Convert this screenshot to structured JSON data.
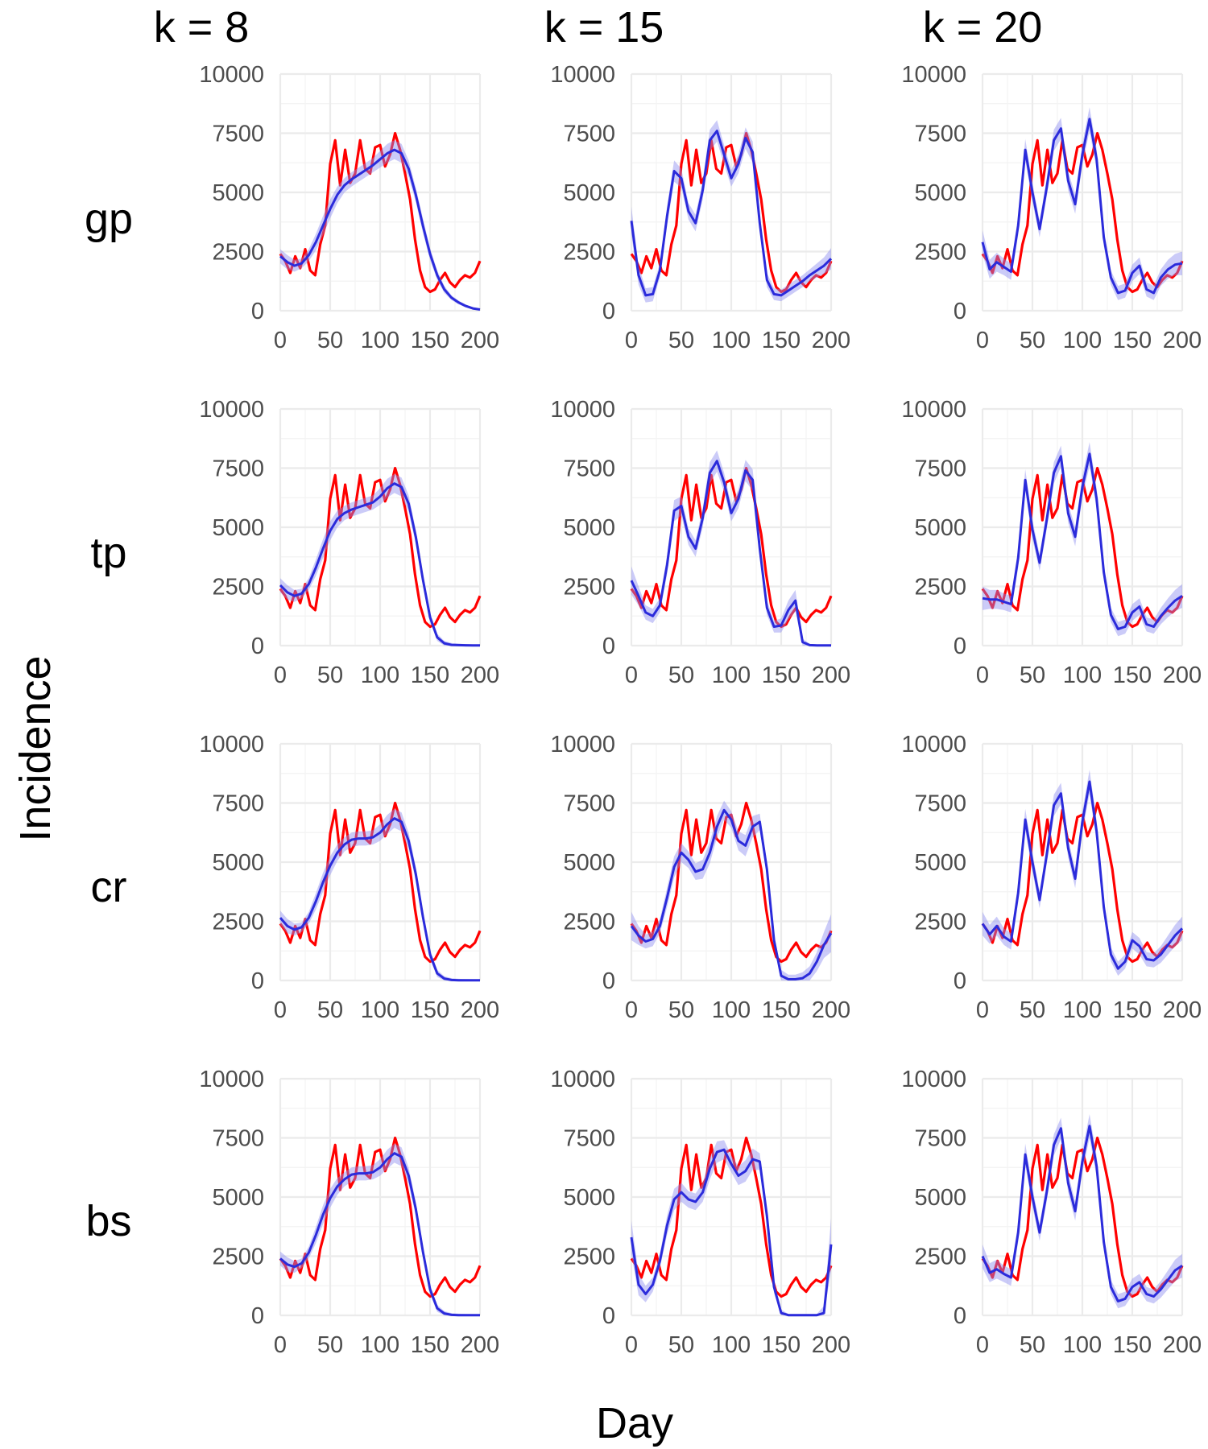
{
  "figure": {
    "x_axis_title": "Day",
    "y_axis_title": "Incidence",
    "columns": [
      "k = 8",
      "k = 15",
      "k = 20"
    ],
    "rows": [
      "gp",
      "tp",
      "cr",
      "bs"
    ],
    "colors": {
      "observed": "#ff0000",
      "fit": "#2b2bdb",
      "ribbon": "#8c8cf0",
      "grid": "#ebebeb",
      "tick": "#4d4d4d"
    }
  },
  "chart_data": {
    "type": "line",
    "layout": "facet grid, 4 rows x 3 columns",
    "xlabel": "Day",
    "ylabel": "Incidence",
    "xlim": [
      0,
      200
    ],
    "ylim": [
      0,
      10000
    ],
    "x_ticks": [
      0,
      50,
      100,
      150,
      200
    ],
    "y_ticks": [
      0,
      2500,
      5000,
      7500,
      10000
    ],
    "grid": true,
    "legend": "none",
    "series": [
      {
        "name": "observed",
        "color": "#ff0000",
        "x": [
          0,
          5,
          10,
          15,
          20,
          25,
          30,
          35,
          40,
          45,
          50,
          55,
          60,
          65,
          70,
          75,
          80,
          85,
          90,
          95,
          100,
          105,
          110,
          115,
          120,
          125,
          130,
          135,
          140,
          145,
          150,
          155,
          160,
          165,
          170,
          175,
          180,
          185,
          190,
          195,
          200
        ],
        "values": [
          2400,
          2100,
          1600,
          2300,
          1800,
          2600,
          1700,
          1500,
          2800,
          3600,
          6200,
          7200,
          5300,
          6800,
          5400,
          5800,
          7200,
          6000,
          5800,
          6900,
          7000,
          6100,
          6600,
          7500,
          6800,
          5800,
          4700,
          3000,
          1700,
          1000,
          800,
          900,
          1300,
          1600,
          1200,
          1000,
          1300,
          1500,
          1400,
          1600,
          2100
        ]
      }
    ],
    "panels": [
      {
        "row": "gp",
        "column": "k = 8",
        "fit": [
          2300,
          2050,
          1900,
          2000,
          2350,
          2900,
          3600,
          4300,
          4900,
          5300,
          5550,
          5750,
          5950,
          6150,
          6400,
          6650,
          6800,
          6650,
          6000,
          4900,
          3600,
          2400,
          1500,
          900,
          550,
          350,
          200,
          100,
          50
        ],
        "band": [
          300,
          300,
          250,
          200,
          250,
          350,
          400,
          400,
          350,
          300,
          300,
          300,
          300,
          300,
          350,
          400,
          400,
          400,
          350,
          300,
          300,
          250,
          200,
          150,
          100,
          80,
          60,
          50,
          40
        ]
      },
      {
        "row": "gp",
        "column": "k = 15",
        "fit": [
          3800,
          1500,
          650,
          700,
          1700,
          4000,
          5900,
          5600,
          4200,
          3700,
          5100,
          7200,
          7600,
          6600,
          5600,
          6200,
          7300,
          6700,
          3700,
          1300,
          700,
          650,
          850,
          1050,
          1250,
          1500,
          1700,
          1900,
          2200
        ],
        "band": [
          600,
          400,
          300,
          300,
          300,
          400,
          450,
          400,
          350,
          350,
          400,
          450,
          450,
          400,
          350,
          400,
          450,
          450,
          350,
          300,
          250,
          250,
          250,
          250,
          250,
          250,
          300,
          350,
          450
        ]
      },
      {
        "row": "gp",
        "column": "k = 20",
        "fit": [
          2900,
          1750,
          2050,
          1850,
          1650,
          3600,
          6800,
          5000,
          3450,
          5200,
          7200,
          7700,
          5500,
          4500,
          6600,
          8100,
          6400,
          3100,
          1400,
          750,
          850,
          1600,
          1900,
          900,
          750,
          1400,
          1750,
          1950,
          2000
        ],
        "band": [
          500,
          400,
          400,
          350,
          350,
          400,
          450,
          400,
          350,
          400,
          450,
          450,
          400,
          400,
          450,
          500,
          450,
          350,
          300,
          300,
          300,
          350,
          350,
          300,
          300,
          350,
          400,
          450,
          500
        ]
      },
      {
        "row": "tp",
        "column": "k = 8",
        "fit": [
          2550,
          2250,
          2100,
          2200,
          2600,
          3300,
          4100,
          4850,
          5350,
          5600,
          5750,
          5850,
          5950,
          6050,
          6300,
          6650,
          6850,
          6700,
          6000,
          4600,
          2800,
          1200,
          350,
          100,
          30,
          20,
          15,
          10,
          10
        ],
        "band": [
          300,
          300,
          250,
          200,
          250,
          350,
          400,
          400,
          350,
          300,
          300,
          300,
          300,
          300,
          350,
          400,
          400,
          400,
          350,
          300,
          250,
          200,
          150,
          100,
          80,
          60,
          50,
          40,
          40
        ]
      },
      {
        "row": "tp",
        "column": "k = 15",
        "fit": [
          2750,
          2100,
          1400,
          1250,
          1700,
          3400,
          5700,
          5900,
          4600,
          4100,
          5400,
          7300,
          7800,
          6900,
          5600,
          6200,
          7400,
          7000,
          4100,
          1600,
          800,
          850,
          1500,
          1900,
          150,
          20,
          10,
          10,
          10
        ],
        "band": [
          600,
          400,
          300,
          300,
          300,
          400,
          450,
          400,
          350,
          350,
          400,
          450,
          450,
          400,
          350,
          400,
          450,
          450,
          350,
          300,
          250,
          300,
          400,
          450,
          150,
          50,
          40,
          40,
          40
        ]
      },
      {
        "row": "tp",
        "column": "k = 20",
        "fit": [
          2000,
          1950,
          1950,
          1850,
          1750,
          3700,
          7000,
          4900,
          3500,
          5300,
          7300,
          8000,
          5600,
          4600,
          6700,
          8100,
          6200,
          3100,
          1300,
          700,
          800,
          1400,
          1650,
          900,
          800,
          1250,
          1600,
          1900,
          2100
        ],
        "band": [
          500,
          400,
          400,
          350,
          350,
          400,
          450,
          400,
          350,
          400,
          450,
          450,
          400,
          400,
          450,
          500,
          450,
          350,
          300,
          300,
          300,
          350,
          350,
          300,
          300,
          350,
          400,
          450,
          500
        ]
      },
      {
        "row": "cr",
        "column": "k = 8",
        "fit": [
          2650,
          2300,
          2150,
          2250,
          2650,
          3350,
          4150,
          4850,
          5400,
          5750,
          5950,
          6000,
          6000,
          6050,
          6250,
          6600,
          6850,
          6700,
          5900,
          4500,
          2700,
          1100,
          300,
          80,
          20,
          10,
          10,
          10,
          10
        ],
        "band": [
          300,
          300,
          250,
          200,
          250,
          350,
          400,
          400,
          350,
          300,
          300,
          300,
          300,
          300,
          350,
          400,
          400,
          400,
          350,
          300,
          250,
          200,
          150,
          100,
          80,
          60,
          50,
          40,
          40
        ]
      },
      {
        "row": "cr",
        "column": "k = 15",
        "fit": [
          2300,
          1900,
          1650,
          1750,
          2300,
          3500,
          4800,
          5400,
          5100,
          4600,
          4700,
          5400,
          6500,
          7200,
          6800,
          5900,
          5700,
          6500,
          6700,
          4700,
          1700,
          200,
          50,
          50,
          100,
          300,
          800,
          1500,
          2000
        ],
        "band": [
          600,
          400,
          300,
          300,
          300,
          400,
          450,
          400,
          350,
          350,
          400,
          450,
          450,
          400,
          350,
          400,
          450,
          450,
          350,
          300,
          250,
          250,
          200,
          200,
          250,
          300,
          400,
          550,
          800
        ]
      },
      {
        "row": "cr",
        "column": "k = 20",
        "fit": [
          2400,
          1950,
          2300,
          1850,
          1650,
          3700,
          6800,
          5000,
          3400,
          5300,
          7400,
          7900,
          5600,
          4300,
          6700,
          8400,
          6300,
          3100,
          1100,
          500,
          800,
          1700,
          1450,
          900,
          850,
          1100,
          1500,
          1900,
          2200
        ],
        "band": [
          500,
          400,
          400,
          350,
          350,
          400,
          450,
          400,
          350,
          400,
          450,
          450,
          400,
          400,
          450,
          500,
          450,
          350,
          300,
          300,
          300,
          350,
          350,
          300,
          300,
          350,
          400,
          450,
          500
        ]
      },
      {
        "row": "bs",
        "column": "k = 8",
        "fit": [
          2400,
          2150,
          2050,
          2200,
          2650,
          3400,
          4250,
          4950,
          5450,
          5750,
          5950,
          6000,
          6000,
          6050,
          6250,
          6600,
          6850,
          6700,
          5900,
          4500,
          2700,
          1100,
          300,
          80,
          20,
          10,
          10,
          10,
          10
        ],
        "band": [
          300,
          300,
          250,
          200,
          250,
          350,
          400,
          400,
          350,
          300,
          300,
          300,
          300,
          300,
          350,
          400,
          400,
          400,
          350,
          300,
          250,
          200,
          150,
          100,
          80,
          60,
          50,
          40,
          40
        ]
      },
      {
        "row": "bs",
        "column": "k = 15",
        "fit": [
          3300,
          1300,
          900,
          1300,
          2300,
          3800,
          4900,
          5200,
          4900,
          4800,
          5200,
          6200,
          6900,
          7000,
          6400,
          5900,
          6100,
          6600,
          6500,
          4200,
          1200,
          100,
          10,
          10,
          10,
          10,
          10,
          100,
          3000
        ],
        "band": [
          700,
          450,
          350,
          300,
          300,
          400,
          450,
          400,
          350,
          350,
          400,
          450,
          450,
          400,
          350,
          400,
          450,
          450,
          350,
          300,
          250,
          150,
          50,
          50,
          50,
          50,
          50,
          300,
          1100
        ]
      },
      {
        "row": "bs",
        "column": "k = 20",
        "fit": [
          2500,
          1800,
          1950,
          1750,
          1600,
          3500,
          6800,
          5000,
          3500,
          5200,
          7200,
          7900,
          5600,
          4400,
          6500,
          8000,
          6300,
          3100,
          1200,
          600,
          700,
          1200,
          1400,
          900,
          800,
          1100,
          1500,
          1900,
          2100
        ],
        "band": [
          500,
          400,
          400,
          350,
          350,
          400,
          450,
          400,
          350,
          400,
          450,
          450,
          400,
          400,
          450,
          500,
          450,
          350,
          300,
          300,
          300,
          350,
          350,
          300,
          300,
          350,
          400,
          450,
          500
        ]
      }
    ]
  }
}
